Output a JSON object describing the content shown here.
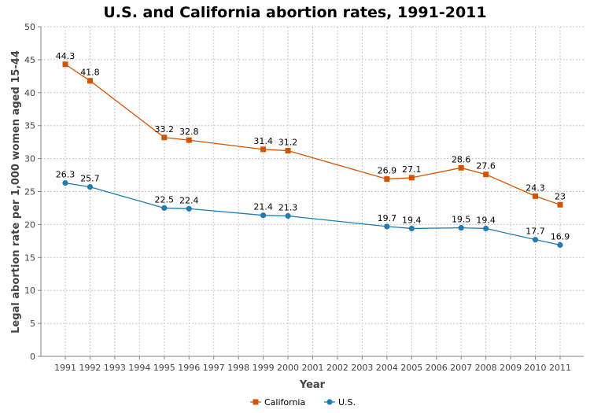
{
  "chart_data": {
    "type": "line",
    "title": "U.S. and California abortion rates, 1991-2011",
    "xlabel": "Year",
    "ylabel": "Legal abortion rate per 1,000 women aged 15-44",
    "ylim": [
      0,
      50
    ],
    "y_ticks": [
      "0",
      "5",
      "10",
      "15",
      "20",
      "25",
      "30",
      "35",
      "40",
      "45",
      "50"
    ],
    "categories": [
      "1991",
      "1992",
      "1993",
      "1994",
      "1995",
      "1996",
      "1997",
      "1998",
      "1999",
      "2000",
      "2001",
      "2002",
      "2003",
      "2004",
      "2005",
      "2006",
      "2007",
      "2008",
      "2009",
      "2010",
      "2011"
    ],
    "grid": true,
    "legend_position": "bottom",
    "series": [
      {
        "name": "California",
        "color": "#d35400",
        "marker": "square",
        "points": [
          {
            "x": "1991",
            "y": 44.3,
            "label": "44.3"
          },
          {
            "x": "1992",
            "y": 41.8,
            "label": "41.8"
          },
          {
            "x": "1995",
            "y": 33.2,
            "label": "33.2"
          },
          {
            "x": "1996",
            "y": 32.8,
            "label": "32.8"
          },
          {
            "x": "1999",
            "y": 31.4,
            "label": "31.4"
          },
          {
            "x": "2000",
            "y": 31.2,
            "label": "31.2"
          },
          {
            "x": "2004",
            "y": 26.9,
            "label": "26.9"
          },
          {
            "x": "2005",
            "y": 27.1,
            "label": "27.1"
          },
          {
            "x": "2007",
            "y": 28.6,
            "label": "28.6"
          },
          {
            "x": "2008",
            "y": 27.6,
            "label": "27.6"
          },
          {
            "x": "2010",
            "y": 24.3,
            "label": "24.3"
          },
          {
            "x": "2011",
            "y": 23,
            "label": "23"
          }
        ]
      },
      {
        "name": "U.S.",
        "color": "#1f7bb0",
        "marker": "circle",
        "points": [
          {
            "x": "1991",
            "y": 26.3,
            "label": "26.3"
          },
          {
            "x": "1992",
            "y": 25.7,
            "label": "25.7"
          },
          {
            "x": "1995",
            "y": 22.5,
            "label": "22.5"
          },
          {
            "x": "1996",
            "y": 22.4,
            "label": "22.4"
          },
          {
            "x": "1999",
            "y": 21.4,
            "label": "21.4"
          },
          {
            "x": "2000",
            "y": 21.3,
            "label": "21.3"
          },
          {
            "x": "2004",
            "y": 19.7,
            "label": "19.7"
          },
          {
            "x": "2005",
            "y": 19.4,
            "label": "19.4"
          },
          {
            "x": "2007",
            "y": 19.5,
            "label": "19.5"
          },
          {
            "x": "2008",
            "y": 19.4,
            "label": "19.4"
          },
          {
            "x": "2010",
            "y": 17.7,
            "label": "17.7"
          },
          {
            "x": "2011",
            "y": 16.9,
            "label": "16.9"
          }
        ]
      }
    ]
  }
}
